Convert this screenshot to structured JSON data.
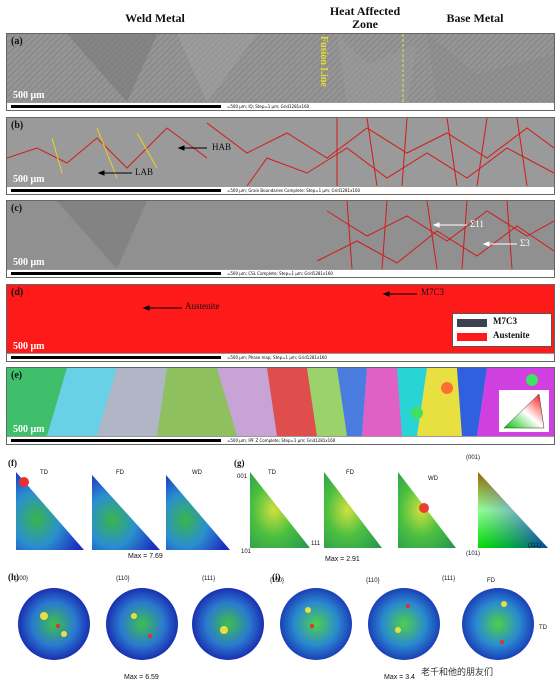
{
  "headers": {
    "weld_metal": "Weld Metal",
    "haz_line1": "Heat Affected",
    "haz_line2": "Zone",
    "base_metal": "Base Metal",
    "fusion_line": "Fusion Line"
  },
  "panels": {
    "a": {
      "label": "(a)",
      "scale": "500 μm",
      "info": "=500 μm; IQ; Step=1 μm; Grid1281x160"
    },
    "b": {
      "label": "(b)",
      "scale": "500 μm",
      "info": "=500 μm; Grain Boundaries Complete; Step=1 μm; Grid1281x160",
      "hab": "HAB",
      "lab": "LAB"
    },
    "c": {
      "label": "(c)",
      "scale": "500 μm",
      "info": "=500 μm; CSL Complete; Step=1 μm; Grid1281x160",
      "sigma11": "Σ11",
      "sigma3": "Σ3"
    },
    "d": {
      "label": "(d)",
      "scale": "500 μm",
      "info": "=500 μm; Phase map; Step=1 μm; Grid1281x160",
      "austenite_arrow": "Austenite",
      "m7c3_arrow": "M7C3",
      "legend": [
        {
          "label": "M7C3",
          "color": "#3a4150"
        },
        {
          "label": "Austenite",
          "color": "#ff1a1a"
        }
      ]
    },
    "e": {
      "label": "(e)",
      "scale": "500 μm",
      "info": "=500 μm; IPF Z Complete; Step=1 μm; Grid1281x160"
    }
  },
  "ipf_f": {
    "label": "(f)",
    "titles": [
      "TD",
      "FD",
      "WD"
    ],
    "max": "Max = 7.69"
  },
  "ipf_g": {
    "label": "(g)",
    "titles": [
      "TD",
      "FD",
      "WD"
    ],
    "max": "Max = 2.91",
    "corners": [
      "001",
      "101",
      "111"
    ]
  },
  "ipf_key": {
    "top": "(001)",
    "left": "(101)",
    "right": "(111)"
  },
  "pf_h": {
    "label": "(h)",
    "titles": [
      "{100}",
      "{110}",
      "{111}"
    ],
    "max": "Max = 6.59"
  },
  "pf_i": {
    "label": "(i)",
    "titles": [
      "{100}",
      "{110}",
      "{111}"
    ],
    "max": "Max = 3.4",
    "fd": "FD",
    "td": "TD"
  },
  "watermark": "老千和他的朋友们"
}
